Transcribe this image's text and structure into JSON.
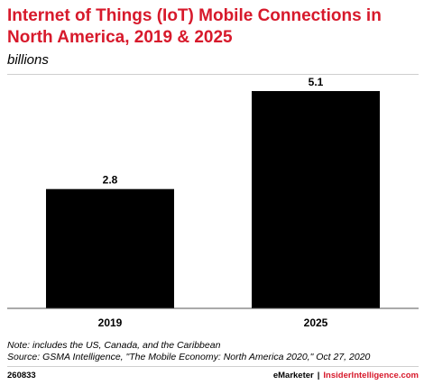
{
  "chart_data": {
    "type": "bar",
    "title": "Internet of Things (IoT) Mobile Connections in North America, 2019 & 2025",
    "subtitle": "billions",
    "categories": [
      "2019",
      "2025"
    ],
    "values": [
      2.8,
      5.1
    ],
    "data_labels": [
      "2.8",
      "5.1"
    ],
    "xlabel": "",
    "ylabel": "",
    "ylim": [
      0,
      5.1
    ],
    "grid": false,
    "bar_color": "#000000"
  },
  "footer": {
    "note": "Note: includes the US, Canada, and the Caribbean",
    "source": "Source: GSMA Intelligence, \"The Mobile Economy: North America 2020,\" Oct 27, 2020",
    "chart_id": "260833",
    "brand_left": "eMarketer",
    "brand_sep": "|",
    "brand_right": "InsiderIntelligence.com"
  },
  "colors": {
    "title": "#d7192b",
    "brand_accent": "#d7192b"
  }
}
